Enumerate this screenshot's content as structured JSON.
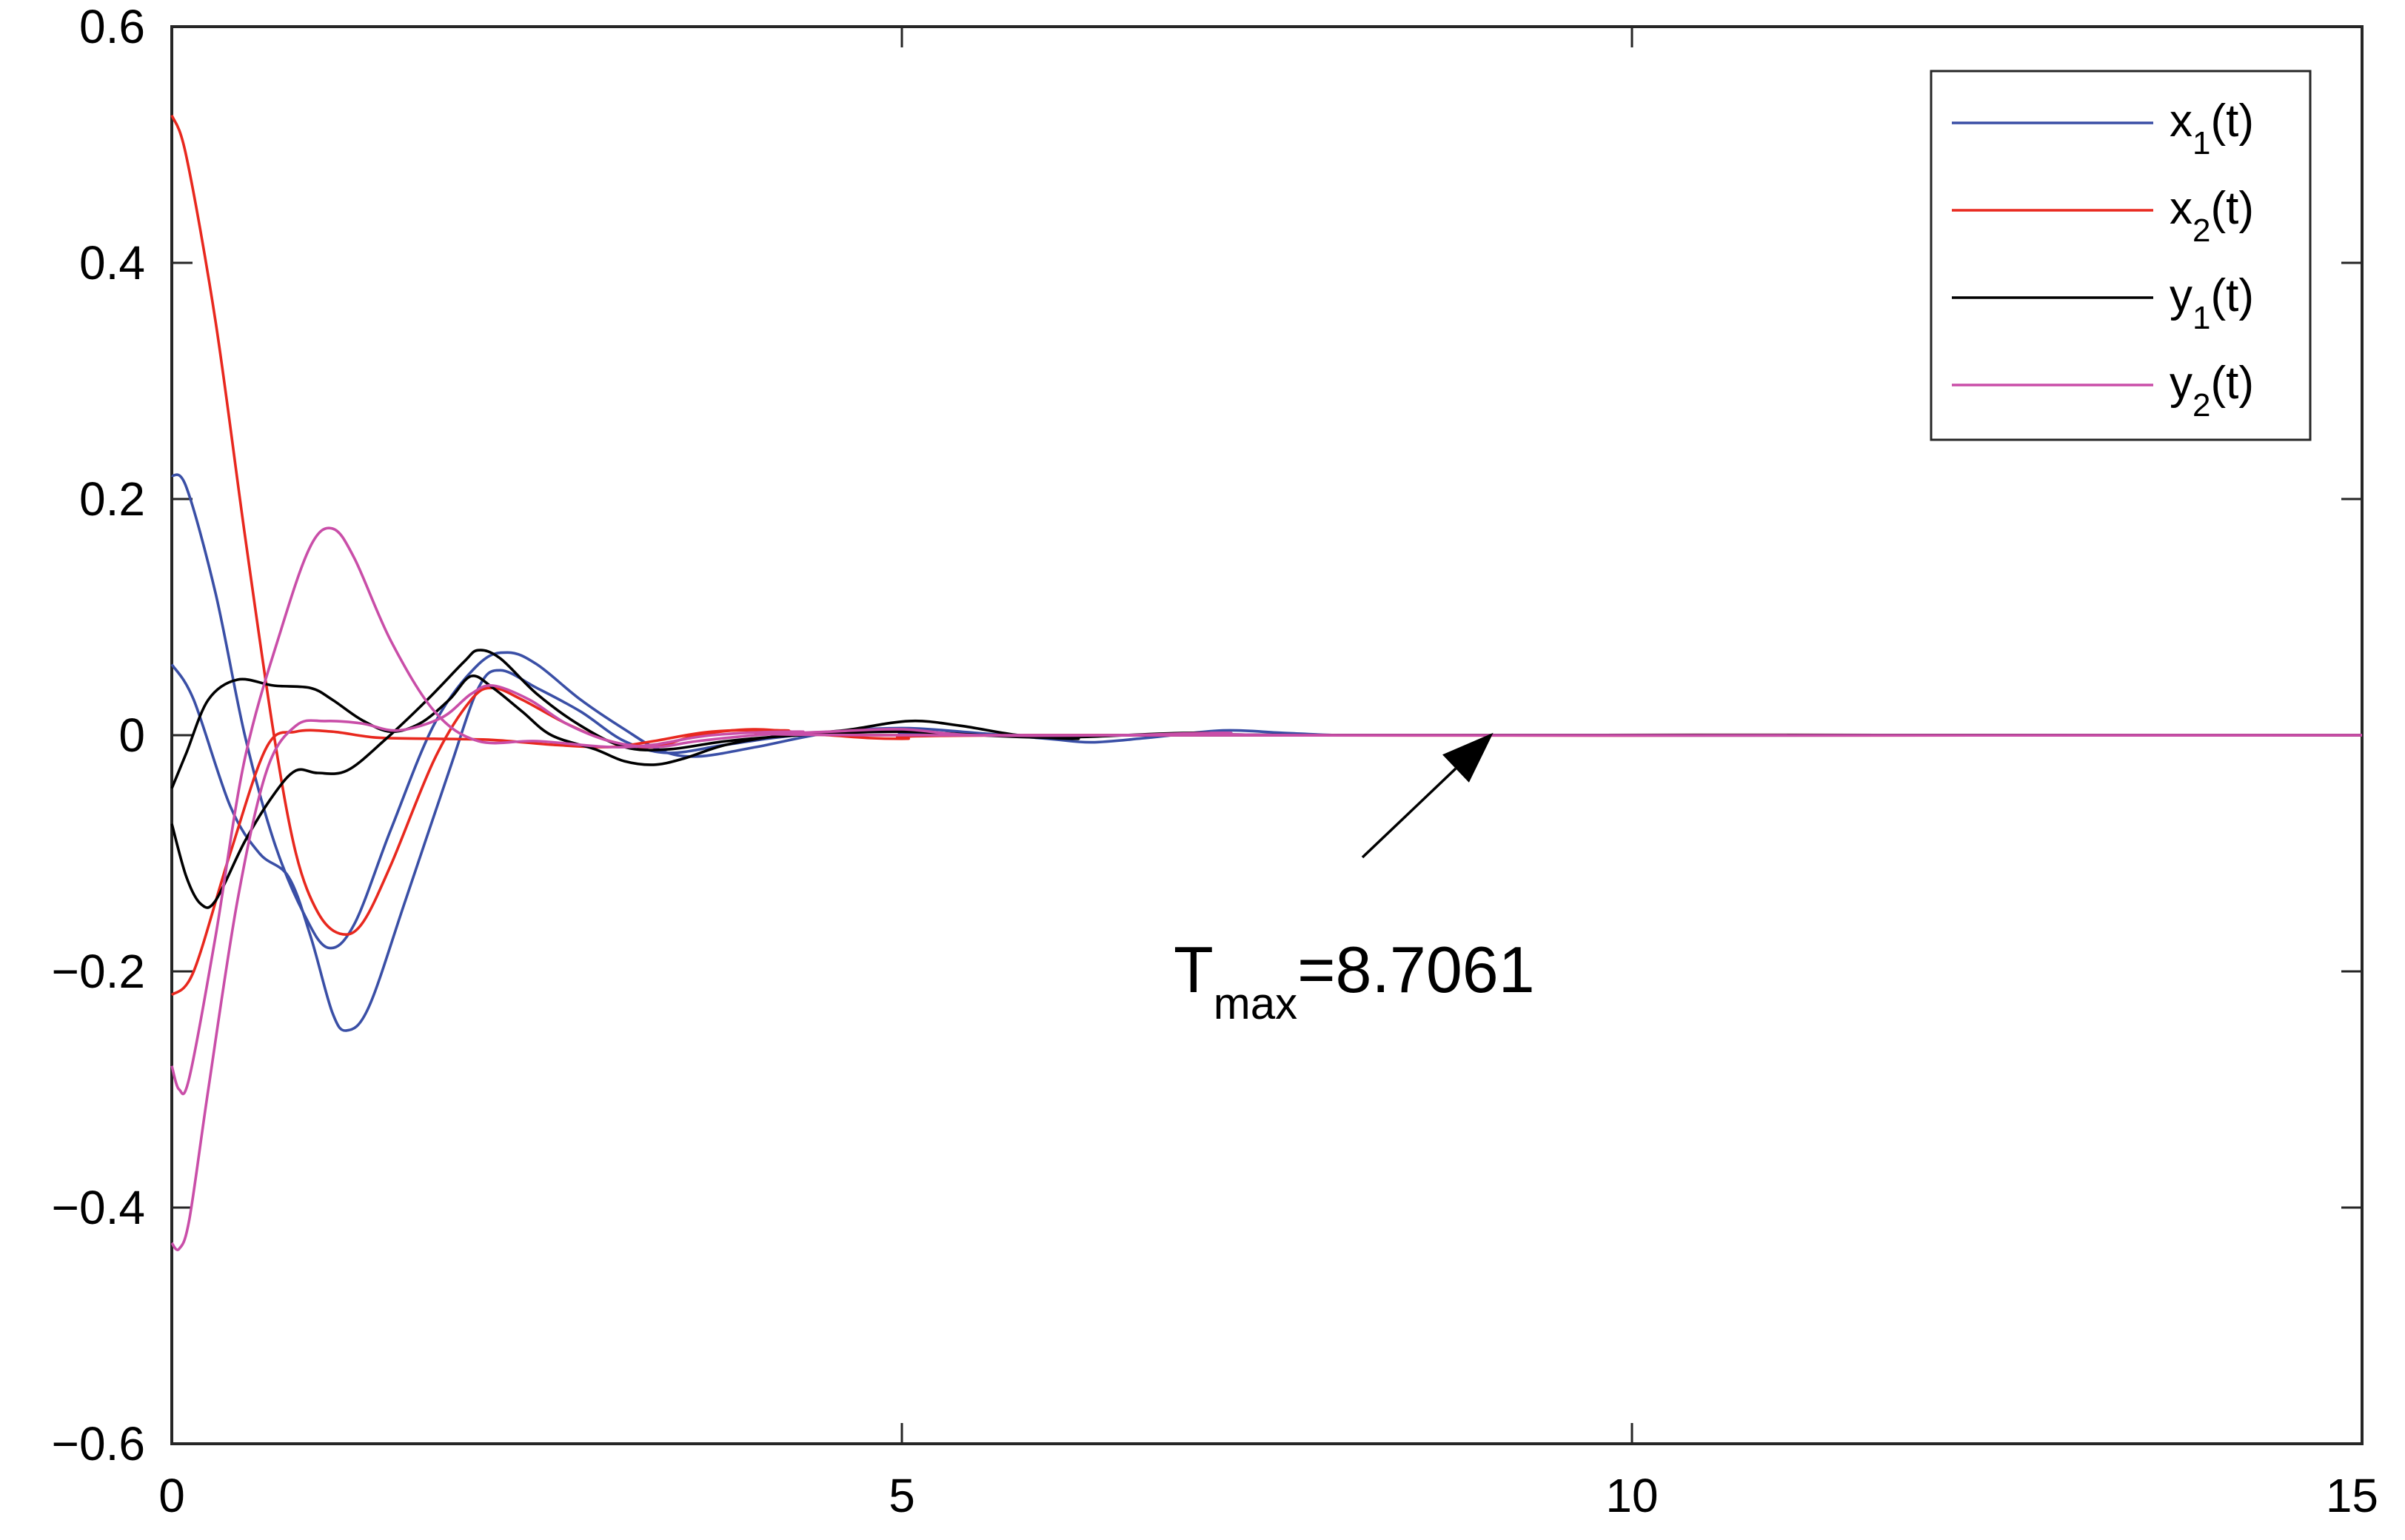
{
  "chart_data": {
    "type": "line",
    "title": "",
    "xlabel": "",
    "ylabel": "",
    "xlim": [
      0,
      15
    ],
    "ylim": [
      -0.6,
      0.6
    ],
    "x_ticks": [
      0,
      5,
      10,
      15
    ],
    "x_tick_labels": [
      "0",
      "5",
      "10",
      "15"
    ],
    "y_ticks": [
      -0.6,
      -0.4,
      -0.2,
      0,
      0.2,
      0.4,
      0.6
    ],
    "y_tick_labels": [
      "−0.6",
      "−0.4",
      "−0.2",
      "0",
      "0.2",
      "0.4",
      "0.6"
    ],
    "grid": false,
    "legend_position": "top-right",
    "series": [
      {
        "name": "x1(t)",
        "legend_base": "x",
        "legend_sub": "1",
        "legend_tail": "(t)",
        "color": "#3a4fa6",
        "curves": [
          [
            [
              0,
              0.22
            ],
            [
              0.1,
              0.21
            ],
            [
              0.3,
              0.12
            ],
            [
              0.5,
              0.0
            ],
            [
              0.7,
              -0.09
            ],
            [
              0.9,
              -0.15
            ],
            [
              1.07,
              -0.18
            ],
            [
              1.25,
              -0.16
            ],
            [
              1.5,
              -0.08
            ],
            [
              1.8,
              0.01
            ],
            [
              2.1,
              0.06
            ],
            [
              2.3,
              0.07
            ],
            [
              2.5,
              0.06
            ],
            [
              2.8,
              0.03
            ],
            [
              3.1,
              0.005
            ],
            [
              3.35,
              -0.013
            ],
            [
              3.6,
              -0.018
            ],
            [
              4.0,
              -0.01
            ],
            [
              4.5,
              0.002
            ],
            [
              5.0,
              0.006
            ],
            [
              5.5,
              0.002
            ],
            [
              6.0,
              -0.003
            ],
            [
              6.3,
              -0.006
            ],
            [
              6.7,
              -0.002
            ],
            [
              7.2,
              0.004
            ],
            [
              7.6,
              0.002
            ],
            [
              8.0,
              0.0
            ],
            [
              8.5,
              0.0
            ],
            [
              15,
              0.0
            ]
          ],
          [
            [
              0,
              0.06
            ],
            [
              0.15,
              0.03
            ],
            [
              0.4,
              -0.06
            ],
            [
              0.6,
              -0.1
            ],
            [
              0.8,
              -0.12
            ],
            [
              0.95,
              -0.17
            ],
            [
              1.1,
              -0.235
            ],
            [
              1.2,
              -0.25
            ],
            [
              1.35,
              -0.23
            ],
            [
              1.6,
              -0.14
            ],
            [
              1.9,
              -0.03
            ],
            [
              2.1,
              0.04
            ],
            [
              2.25,
              0.055
            ],
            [
              2.5,
              0.04
            ],
            [
              2.8,
              0.02
            ],
            [
              3.1,
              -0.005
            ],
            [
              3.4,
              -0.015
            ],
            [
              3.8,
              -0.008
            ],
            [
              4.3,
              0.0
            ],
            [
              5.0,
              0.003
            ],
            [
              6.0,
              0.0
            ],
            [
              15,
              0.0
            ]
          ]
        ]
      },
      {
        "name": "x2(t)",
        "legend_base": "x",
        "legend_sub": "2",
        "legend_tail": "(t)",
        "color": "#e8281e",
        "curves": [
          [
            [
              0,
              0.525
            ],
            [
              0.1,
              0.49
            ],
            [
              0.3,
              0.35
            ],
            [
              0.5,
              0.17
            ],
            [
              0.7,
              0.0
            ],
            [
              0.85,
              -0.1
            ],
            [
              1.0,
              -0.15
            ],
            [
              1.15,
              -0.168
            ],
            [
              1.3,
              -0.16
            ],
            [
              1.5,
              -0.11
            ],
            [
              1.8,
              -0.02
            ],
            [
              2.05,
              0.03
            ],
            [
              2.2,
              0.04
            ],
            [
              2.4,
              0.03
            ],
            [
              2.7,
              0.01
            ],
            [
              3.0,
              -0.005
            ],
            [
              3.3,
              -0.01
            ],
            [
              3.6,
              0.0
            ],
            [
              4.0,
              0.005
            ],
            [
              4.5,
              0.0
            ],
            [
              5.0,
              -0.003
            ],
            [
              6.0,
              0.0
            ],
            [
              15,
              0.0
            ]
          ],
          [
            [
              0,
              -0.22
            ],
            [
              0.15,
              -0.2
            ],
            [
              0.4,
              -0.1
            ],
            [
              0.65,
              -0.01
            ],
            [
              0.85,
              0.003
            ],
            [
              1.1,
              0.003
            ],
            [
              1.4,
              -0.002
            ],
            [
              1.8,
              -0.003
            ],
            [
              2.2,
              -0.004
            ],
            [
              2.6,
              -0.008
            ],
            [
              3.0,
              -0.01
            ],
            [
              3.3,
              -0.005
            ],
            [
              3.7,
              0.003
            ],
            [
              4.2,
              0.004
            ],
            [
              5.0,
              0.0
            ],
            [
              15,
              0.0
            ]
          ]
        ]
      },
      {
        "name": "y1(t)",
        "legend_base": "y",
        "legend_sub": "1",
        "legend_tail": "(t)",
        "color": "#000000",
        "curves": [
          [
            [
              0,
              -0.045
            ],
            [
              0.1,
              -0.015
            ],
            [
              0.25,
              0.03
            ],
            [
              0.45,
              0.047
            ],
            [
              0.7,
              0.042
            ],
            [
              0.95,
              0.04
            ],
            [
              1.1,
              0.03
            ],
            [
              1.3,
              0.013
            ],
            [
              1.5,
              0.003
            ],
            [
              1.7,
              0.01
            ],
            [
              1.9,
              0.03
            ],
            [
              2.05,
              0.05
            ],
            [
              2.2,
              0.04
            ],
            [
              2.4,
              0.02
            ],
            [
              2.6,
              0.0
            ],
            [
              2.9,
              -0.012
            ],
            [
              3.1,
              -0.022
            ],
            [
              3.3,
              -0.025
            ],
            [
              3.5,
              -0.02
            ],
            [
              3.8,
              -0.008
            ],
            [
              4.2,
              0.0
            ],
            [
              4.6,
              0.004
            ],
            [
              5.05,
              0.012
            ],
            [
              5.4,
              0.008
            ],
            [
              5.8,
              0.0
            ],
            [
              6.2,
              -0.003
            ],
            [
              6.6,
              0.0
            ],
            [
              15,
              0.0
            ]
          ],
          [
            [
              0,
              -0.075
            ],
            [
              0.1,
              -0.12
            ],
            [
              0.2,
              -0.143
            ],
            [
              0.3,
              -0.14
            ],
            [
              0.5,
              -0.09
            ],
            [
              0.7,
              -0.05
            ],
            [
              0.85,
              -0.03
            ],
            [
              1.0,
              -0.032
            ],
            [
              1.2,
              -0.03
            ],
            [
              1.45,
              -0.005
            ],
            [
              1.75,
              0.03
            ],
            [
              2.0,
              0.062
            ],
            [
              2.1,
              0.072
            ],
            [
              2.25,
              0.065
            ],
            [
              2.5,
              0.035
            ],
            [
              2.8,
              0.008
            ],
            [
              3.1,
              -0.01
            ],
            [
              3.4,
              -0.012
            ],
            [
              3.8,
              -0.005
            ],
            [
              4.3,
              0.0
            ],
            [
              5.0,
              0.003
            ],
            [
              6.0,
              -0.002
            ],
            [
              7.0,
              0.002
            ],
            [
              8.0,
              0.0
            ],
            [
              15,
              0.0
            ]
          ]
        ]
      },
      {
        "name": "y2(t)",
        "legend_base": "y",
        "legend_sub": "2",
        "legend_tail": "(t)",
        "color": "#c94ea8",
        "curves": [
          [
            [
              0,
              -0.28
            ],
            [
              0.05,
              -0.3
            ],
            [
              0.12,
              -0.29
            ],
            [
              0.3,
              -0.17
            ],
            [
              0.5,
              -0.02
            ],
            [
              0.75,
              0.09
            ],
            [
              0.95,
              0.16
            ],
            [
              1.1,
              0.175
            ],
            [
              1.25,
              0.15
            ],
            [
              1.5,
              0.08
            ],
            [
              1.8,
              0.02
            ],
            [
              2.1,
              -0.005
            ],
            [
              2.5,
              -0.005
            ],
            [
              3.0,
              -0.01
            ],
            [
              3.3,
              -0.008
            ],
            [
              3.7,
              0.0
            ],
            [
              4.3,
              0.003
            ],
            [
              5.0,
              0.0
            ],
            [
              15,
              0.0
            ]
          ],
          [
            [
              0,
              -0.43
            ],
            [
              0.05,
              -0.435
            ],
            [
              0.12,
              -0.41
            ],
            [
              0.25,
              -0.3
            ],
            [
              0.45,
              -0.14
            ],
            [
              0.65,
              -0.03
            ],
            [
              0.85,
              0.008
            ],
            [
              1.05,
              0.012
            ],
            [
              1.3,
              0.01
            ],
            [
              1.55,
              0.004
            ],
            [
              1.85,
              0.015
            ],
            [
              2.05,
              0.035
            ],
            [
              2.2,
              0.042
            ],
            [
              2.45,
              0.03
            ],
            [
              2.7,
              0.01
            ],
            [
              3.0,
              -0.005
            ],
            [
              3.3,
              -0.01
            ],
            [
              3.6,
              -0.005
            ],
            [
              4.0,
              0.0
            ],
            [
              4.5,
              0.003
            ],
            [
              5.0,
              0.005
            ],
            [
              5.5,
              0.0
            ],
            [
              6.5,
              0.0
            ],
            [
              7.2,
              0.002
            ],
            [
              8.0,
              0.0
            ],
            [
              15,
              0.0
            ]
          ]
        ]
      }
    ],
    "annotation": {
      "text_base": "T",
      "text_sub": "max",
      "text_tail": "=8.7061",
      "arrow_tip": [
        9.05,
        0.002
      ]
    }
  }
}
